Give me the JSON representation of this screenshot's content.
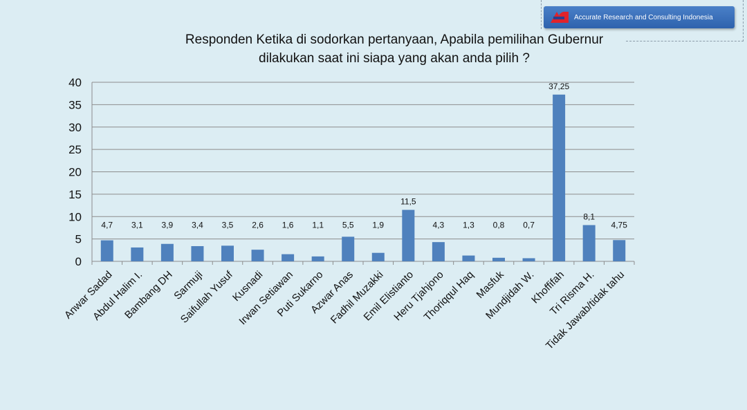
{
  "logo": {
    "text": "Accurate Research and Consulting Indonesia"
  },
  "chart_data": {
    "type": "bar",
    "title_lines": [
      "Responden Ketika di sodorkan pertanyaan, Apabila pemilihan Gubernur",
      "dilakukan saat ini  siapa yang akan anda pilih ?"
    ],
    "categories": [
      "Anwar Sadad",
      "Abdul Halim I.",
      "Bambang DH",
      "Sarmuji",
      "Saifullah Yusuf",
      "Kusnadi",
      "Irwan Setiawan",
      "Puti Sukarno",
      "Azwar Anas",
      "Fadhil Muzakki",
      "Emil Elistianto",
      "Heru Tjahjono",
      "Thoriqqul Haq",
      "Masfuk",
      "Mundjidah W.",
      "Khoffifah",
      "Tri Risma H.",
      "Tidak Jawab/tidak tahu"
    ],
    "values": [
      4.7,
      3.1,
      3.9,
      3.4,
      3.5,
      2.6,
      1.6,
      1.1,
      5.5,
      1.9,
      11.5,
      4.3,
      1.3,
      0.8,
      0.7,
      37.25,
      8.1,
      4.75
    ],
    "data_labels": [
      "4,7",
      "3,1",
      "3,9",
      "3,4",
      "3,5",
      "2,6",
      "1,6",
      "1,1",
      "5,5",
      "1,9",
      "11,5",
      "4,3",
      "1,3",
      "0,8",
      "0,7",
      "37,25",
      "8,1",
      "4,75"
    ],
    "yticks": [
      "0",
      "5",
      "10",
      "15",
      "20",
      "25",
      "30",
      "35",
      "40"
    ],
    "ylim": [
      0,
      40
    ],
    "grid": true,
    "legend": "none",
    "bar_color": "#4f81bd",
    "xlabel": "",
    "ylabel": ""
  }
}
